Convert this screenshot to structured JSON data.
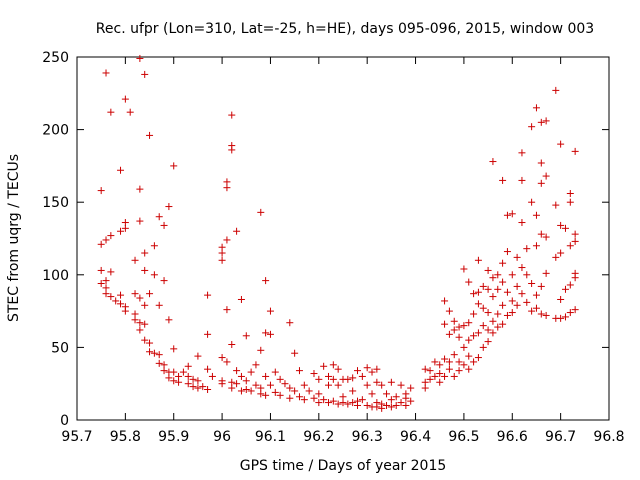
{
  "chart_data": {
    "type": "scatter",
    "title": "Rec. ufpr (Lon=310, Lat=-25, h=HE), days 095-096, 2015, window 003",
    "xlabel": "GPS time / Days of year 2015",
    "ylabel": "STEC from uqrg / TECUs",
    "xlim": [
      95.7,
      96.8
    ],
    "ylim": [
      0,
      250
    ],
    "xticks": [
      "95.7",
      "95.8",
      "95.9",
      "96",
      "96.1",
      "96.2",
      "96.3",
      "96.4",
      "96.5",
      "96.6",
      "96.7",
      "96.8"
    ],
    "yticks": [
      "0",
      "50",
      "100",
      "150",
      "200",
      "250"
    ],
    "grid": false,
    "legend": "none",
    "marker": "+",
    "color": "#cc0000",
    "points": [
      [
        95.75,
        158
      ],
      [
        95.75,
        121
      ],
      [
        95.75,
        103
      ],
      [
        95.75,
        94
      ],
      [
        95.76,
        239
      ],
      [
        95.76,
        124
      ],
      [
        95.76,
        96
      ],
      [
        95.76,
        91
      ],
      [
        95.76,
        87
      ],
      [
        95.77,
        212
      ],
      [
        95.77,
        127
      ],
      [
        95.77,
        102
      ],
      [
        95.77,
        85
      ],
      [
        95.78,
        82
      ],
      [
        95.79,
        172
      ],
      [
        95.79,
        130
      ],
      [
        95.79,
        86
      ],
      [
        95.79,
        80
      ],
      [
        95.8,
        221
      ],
      [
        95.8,
        136
      ],
      [
        95.8,
        132
      ],
      [
        95.8,
        78
      ],
      [
        95.8,
        75
      ],
      [
        95.81,
        212
      ],
      [
        95.82,
        110
      ],
      [
        95.82,
        87
      ],
      [
        95.82,
        73
      ],
      [
        95.82,
        69
      ],
      [
        95.83,
        249
      ],
      [
        95.83,
        159
      ],
      [
        95.83,
        137
      ],
      [
        95.83,
        84
      ],
      [
        95.83,
        67
      ],
      [
        95.83,
        62
      ],
      [
        95.84,
        238
      ],
      [
        95.84,
        115
      ],
      [
        95.84,
        103
      ],
      [
        95.84,
        79
      ],
      [
        95.84,
        66
      ],
      [
        95.84,
        55
      ],
      [
        95.85,
        196
      ],
      [
        95.85,
        87
      ],
      [
        95.85,
        53
      ],
      [
        95.85,
        47
      ],
      [
        95.86,
        120
      ],
      [
        95.86,
        100
      ],
      [
        95.86,
        46
      ],
      [
        95.87,
        140
      ],
      [
        95.87,
        79
      ],
      [
        95.87,
        45
      ],
      [
        95.87,
        39
      ],
      [
        95.88,
        134
      ],
      [
        95.88,
        96
      ],
      [
        95.88,
        38
      ],
      [
        95.88,
        34
      ],
      [
        95.89,
        147
      ],
      [
        95.89,
        69
      ],
      [
        95.89,
        33
      ],
      [
        95.89,
        29
      ],
      [
        95.9,
        175
      ],
      [
        95.9,
        49
      ],
      [
        95.9,
        33
      ],
      [
        95.9,
        27
      ],
      [
        95.91,
        30
      ],
      [
        95.91,
        26
      ],
      [
        95.92,
        33
      ],
      [
        95.93,
        37
      ],
      [
        95.93,
        30
      ],
      [
        95.93,
        25
      ],
      [
        95.94,
        28
      ],
      [
        95.94,
        23
      ],
      [
        95.95,
        44
      ],
      [
        95.95,
        27
      ],
      [
        95.95,
        22
      ],
      [
        95.96,
        23
      ],
      [
        95.97,
        86
      ],
      [
        95.97,
        59
      ],
      [
        95.97,
        35
      ],
      [
        95.97,
        21
      ],
      [
        95.98,
        30
      ],
      [
        96.0,
        119
      ],
      [
        96.0,
        115
      ],
      [
        96.0,
        110
      ],
      [
        96.0,
        43
      ],
      [
        96.0,
        27
      ],
      [
        96.0,
        25
      ],
      [
        96.01,
        164
      ],
      [
        96.01,
        160
      ],
      [
        96.01,
        124
      ],
      [
        96.01,
        76
      ],
      [
        96.01,
        40
      ],
      [
        96.02,
        210
      ],
      [
        96.02,
        189
      ],
      [
        96.02,
        186
      ],
      [
        96.02,
        52
      ],
      [
        96.02,
        26
      ],
      [
        96.02,
        22
      ],
      [
        96.03,
        130
      ],
      [
        96.03,
        34
      ],
      [
        96.03,
        25
      ],
      [
        96.04,
        83
      ],
      [
        96.04,
        30
      ],
      [
        96.04,
        20
      ],
      [
        96.05,
        58
      ],
      [
        96.05,
        27
      ],
      [
        96.05,
        21
      ],
      [
        96.06,
        33
      ],
      [
        96.06,
        20
      ],
      [
        96.07,
        38
      ],
      [
        96.07,
        24
      ],
      [
        96.08,
        143
      ],
      [
        96.08,
        48
      ],
      [
        96.08,
        22
      ],
      [
        96.08,
        18
      ],
      [
        96.09,
        96
      ],
      [
        96.09,
        60
      ],
      [
        96.09,
        30
      ],
      [
        96.09,
        17
      ],
      [
        96.1,
        75
      ],
      [
        96.1,
        59
      ],
      [
        96.1,
        24
      ],
      [
        96.11,
        33
      ],
      [
        96.11,
        19
      ],
      [
        96.12,
        28
      ],
      [
        96.12,
        17
      ],
      [
        96.13,
        25
      ],
      [
        96.14,
        67
      ],
      [
        96.14,
        22
      ],
      [
        96.14,
        15
      ],
      [
        96.15,
        46
      ],
      [
        96.15,
        20
      ],
      [
        96.16,
        34
      ],
      [
        96.16,
        16
      ],
      [
        96.17,
        24
      ],
      [
        96.17,
        14
      ],
      [
        96.18,
        20
      ],
      [
        96.19,
        32
      ],
      [
        96.19,
        15
      ],
      [
        96.2,
        28
      ],
      [
        96.2,
        18
      ],
      [
        96.2,
        12
      ],
      [
        96.21,
        37
      ],
      [
        96.21,
        14
      ],
      [
        96.22,
        30
      ],
      [
        96.22,
        24
      ],
      [
        96.22,
        12
      ],
      [
        96.23,
        38
      ],
      [
        96.23,
        28
      ],
      [
        96.23,
        13
      ],
      [
        96.24,
        35
      ],
      [
        96.24,
        24
      ],
      [
        96.24,
        11
      ],
      [
        96.25,
        28
      ],
      [
        96.25,
        16
      ],
      [
        96.25,
        12
      ],
      [
        96.26,
        28
      ],
      [
        96.26,
        11
      ],
      [
        96.27,
        29
      ],
      [
        96.27,
        20
      ],
      [
        96.27,
        12
      ],
      [
        96.28,
        34
      ],
      [
        96.28,
        13
      ],
      [
        96.28,
        10
      ],
      [
        96.29,
        30
      ],
      [
        96.29,
        14
      ],
      [
        96.3,
        36
      ],
      [
        96.3,
        24
      ],
      [
        96.3,
        10
      ],
      [
        96.31,
        33
      ],
      [
        96.31,
        18
      ],
      [
        96.31,
        9
      ],
      [
        96.32,
        35
      ],
      [
        96.32,
        26
      ],
      [
        96.32,
        12
      ],
      [
        96.32,
        9
      ],
      [
        96.33,
        24
      ],
      [
        96.33,
        11
      ],
      [
        96.33,
        8
      ],
      [
        96.34,
        18
      ],
      [
        96.34,
        10
      ],
      [
        96.35,
        26
      ],
      [
        96.35,
        14
      ],
      [
        96.35,
        9
      ],
      [
        96.36,
        16
      ],
      [
        96.36,
        10
      ],
      [
        96.37,
        24
      ],
      [
        96.37,
        12
      ],
      [
        96.38,
        18
      ],
      [
        96.38,
        15
      ],
      [
        96.38,
        10
      ],
      [
        96.39,
        22
      ],
      [
        96.39,
        13
      ],
      [
        96.42,
        35
      ],
      [
        96.42,
        26
      ],
      [
        96.42,
        22
      ],
      [
        96.43,
        34
      ],
      [
        96.43,
        28
      ],
      [
        96.44,
        40
      ],
      [
        96.44,
        30
      ],
      [
        96.45,
        38
      ],
      [
        96.45,
        32
      ],
      [
        96.45,
        26
      ],
      [
        96.46,
        82
      ],
      [
        96.46,
        66
      ],
      [
        96.46,
        42
      ],
      [
        96.46,
        30
      ],
      [
        96.47,
        75
      ],
      [
        96.47,
        59
      ],
      [
        96.47,
        40
      ],
      [
        96.47,
        35
      ],
      [
        96.48,
        68
      ],
      [
        96.48,
        62
      ],
      [
        96.48,
        45
      ],
      [
        96.48,
        30
      ],
      [
        96.49,
        64
      ],
      [
        96.49,
        57
      ],
      [
        96.49,
        40
      ],
      [
        96.49,
        34
      ],
      [
        96.5,
        104
      ],
      [
        96.5,
        65
      ],
      [
        96.5,
        50
      ],
      [
        96.5,
        38
      ],
      [
        96.51,
        95
      ],
      [
        96.51,
        67
      ],
      [
        96.51,
        55
      ],
      [
        96.51,
        44
      ],
      [
        96.51,
        35
      ],
      [
        96.52,
        87
      ],
      [
        96.52,
        73
      ],
      [
        96.52,
        58
      ],
      [
        96.52,
        40
      ],
      [
        96.53,
        110
      ],
      [
        96.53,
        88
      ],
      [
        96.53,
        80
      ],
      [
        96.53,
        60
      ],
      [
        96.53,
        43
      ],
      [
        96.54,
        92
      ],
      [
        96.54,
        77
      ],
      [
        96.54,
        65
      ],
      [
        96.54,
        50
      ],
      [
        96.55,
        103
      ],
      [
        96.55,
        90
      ],
      [
        96.55,
        74
      ],
      [
        96.55,
        62
      ],
      [
        96.55,
        54
      ],
      [
        96.56,
        178
      ],
      [
        96.56,
        98
      ],
      [
        96.56,
        85
      ],
      [
        96.56,
        68
      ],
      [
        96.56,
        60
      ],
      [
        96.57,
        100
      ],
      [
        96.57,
        90
      ],
      [
        96.57,
        73
      ],
      [
        96.57,
        64
      ],
      [
        96.58,
        165
      ],
      [
        96.58,
        108
      ],
      [
        96.58,
        95
      ],
      [
        96.58,
        79
      ],
      [
        96.58,
        66
      ],
      [
        96.59,
        141
      ],
      [
        96.59,
        116
      ],
      [
        96.59,
        88
      ],
      [
        96.59,
        72
      ],
      [
        96.6,
        142
      ],
      [
        96.6,
        100
      ],
      [
        96.6,
        82
      ],
      [
        96.6,
        74
      ],
      [
        96.61,
        112
      ],
      [
        96.61,
        92
      ],
      [
        96.61,
        79
      ],
      [
        96.62,
        184
      ],
      [
        96.62,
        165
      ],
      [
        96.62,
        136
      ],
      [
        96.62,
        105
      ],
      [
        96.62,
        87
      ],
      [
        96.63,
        118
      ],
      [
        96.63,
        100
      ],
      [
        96.63,
        81
      ],
      [
        96.64,
        202
      ],
      [
        96.64,
        150
      ],
      [
        96.64,
        94
      ],
      [
        96.64,
        75
      ],
      [
        96.65,
        215
      ],
      [
        96.65,
        141
      ],
      [
        96.65,
        120
      ],
      [
        96.65,
        86
      ],
      [
        96.65,
        77
      ],
      [
        96.66,
        205
      ],
      [
        96.66,
        177
      ],
      [
        96.66,
        163
      ],
      [
        96.66,
        128
      ],
      [
        96.66,
        92
      ],
      [
        96.66,
        73
      ],
      [
        96.67,
        206
      ],
      [
        96.67,
        168
      ],
      [
        96.67,
        126
      ],
      [
        96.67,
        101
      ],
      [
        96.67,
        72
      ],
      [
        96.69,
        227
      ],
      [
        96.69,
        148
      ],
      [
        96.69,
        112
      ],
      [
        96.69,
        70
      ],
      [
        96.7,
        190
      ],
      [
        96.7,
        134
      ],
      [
        96.7,
        115
      ],
      [
        96.7,
        83
      ],
      [
        96.7,
        70
      ],
      [
        96.71,
        132
      ],
      [
        96.71,
        90
      ],
      [
        96.71,
        71
      ],
      [
        96.72,
        156
      ],
      [
        96.72,
        150
      ],
      [
        96.72,
        120
      ],
      [
        96.72,
        93
      ],
      [
        96.72,
        74
      ],
      [
        96.73,
        185
      ],
      [
        96.73,
        128
      ],
      [
        96.73,
        123
      ],
      [
        96.73,
        101
      ],
      [
        96.73,
        98
      ],
      [
        96.73,
        76
      ]
    ]
  }
}
